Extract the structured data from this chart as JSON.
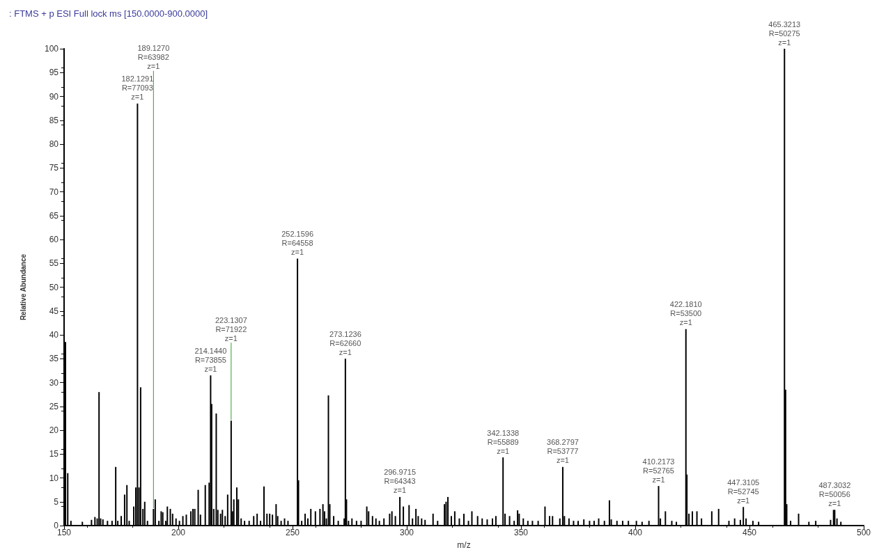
{
  "chart_data": {
    "type": "bar",
    "title": ": FTMS + p ESI Full lock ms [150.0000-900.0000]",
    "xlabel": "m/z",
    "ylabel": "Relative Abundance",
    "xlim": [
      150,
      500
    ],
    "xticks": [
      150,
      200,
      250,
      300,
      350,
      400,
      450,
      500
    ],
    "ylim": [
      0,
      100
    ],
    "yticks": [
      0,
      5,
      10,
      15,
      20,
      25,
      30,
      35,
      40,
      45,
      50,
      55,
      60,
      65,
      70,
      75,
      80,
      85,
      90,
      95,
      100
    ],
    "grid": false,
    "series": [
      {
        "color": "#000000",
        "x": [
          150.6,
          151.6,
          153,
          158,
          162,
          163.5,
          164.5,
          165.3,
          166,
          167,
          169,
          171,
          172.6,
          173.5,
          175,
          176.5,
          177.5,
          178.5,
          180.5,
          181.4,
          182.1291,
          182.8,
          183.5,
          184.5,
          185.3,
          186.5,
          189.127,
          189.9,
          191.5,
          192.5,
          193.2,
          194.5,
          195.2,
          196.5,
          197.5,
          199,
          200.5,
          202,
          203.5,
          205.5,
          206.4,
          207.2,
          208.7,
          209.7,
          211.8,
          213.5,
          214.144,
          214.6,
          215.5,
          216.6,
          217.3,
          218.5,
          219.3,
          220.5,
          221.6,
          223.1307,
          223.7,
          224.3,
          225.6,
          226.3,
          227.5,
          229,
          231,
          233,
          234.5,
          236,
          237.5,
          238.8,
          240,
          241.2,
          242.8,
          243.5,
          245,
          246.5,
          248,
          252.1596,
          252.6,
          254,
          255.5,
          256.7,
          258,
          260,
          262,
          263.3,
          264,
          264.8,
          265.7,
          266.3,
          268,
          270,
          272.6,
          273.1236,
          273.6,
          274.5,
          276,
          278,
          280,
          282.5,
          283.3,
          285,
          286.5,
          288,
          290,
          292.5,
          293.5,
          295,
          296.9715,
          298.5,
          301,
          302.5,
          304,
          305,
          306.5,
          308,
          311.5,
          313.5,
          316.5,
          317.2,
          318,
          319.5,
          321,
          323,
          325,
          327,
          328.5,
          331,
          333,
          335.2,
          337.5,
          339,
          342.1338,
          343,
          345,
          347,
          348.5,
          349.2,
          351,
          353,
          355,
          357.5,
          360.5,
          362.5,
          363.8,
          367,
          368.2797,
          369,
          371,
          373,
          375,
          377.5,
          380,
          382,
          384,
          386.5,
          388.7,
          389.5,
          392,
          394.5,
          397,
          400.5,
          403,
          406,
          410.2173,
          411,
          413.2,
          416,
          418,
          422.181,
          422.6,
          423.5,
          425,
          427,
          429,
          433.5,
          436.5,
          441,
          443.5,
          446,
          447.3105,
          448.5,
          451.5,
          454,
          465.3213,
          465.8,
          466.3,
          468,
          471.5,
          476,
          479,
          485.5,
          486.8,
          487.3032,
          488.3,
          490
        ],
        "values": [
          38.5,
          11,
          1,
          0.8,
          1.2,
          1.8,
          1.5,
          28,
          1.5,
          1.3,
          1,
          1,
          12.3,
          1,
          2,
          6.5,
          8.5,
          1,
          4,
          8,
          88.5,
          8,
          29,
          3.5,
          5,
          1,
          3.5,
          5.5,
          1,
          3,
          2.8,
          1,
          4,
          3.5,
          2.5,
          1.5,
          1,
          2,
          2.3,
          3,
          3.5,
          3.5,
          7.5,
          2.3,
          8.5,
          9,
          31.5,
          25.5,
          3.5,
          23.5,
          3.3,
          2.5,
          3.3,
          2,
          6.5,
          22,
          3,
          5.5,
          8,
          5.5,
          1.5,
          1,
          1,
          2,
          2.5,
          1,
          8.2,
          2.5,
          2.5,
          2.3,
          4.5,
          2,
          1,
          1.5,
          1,
          56,
          9.5,
          1,
          2.5,
          1.5,
          3.5,
          3,
          3.5,
          4.5,
          3,
          1.5,
          27.3,
          4.5,
          2,
          1,
          1.5,
          35,
          5.5,
          1,
          1.5,
          1,
          1,
          4,
          3,
          2,
          1.5,
          1,
          1.5,
          2.5,
          3,
          2,
          6,
          4,
          4.3,
          1.5,
          3.5,
          2,
          1.5,
          1.2,
          2.5,
          1,
          4.5,
          5,
          6,
          2,
          3,
          1.5,
          2.5,
          1,
          3,
          2,
          1.5,
          1.3,
          1.5,
          2,
          14.3,
          2.5,
          2,
          1,
          3.2,
          2.5,
          1.5,
          1,
          1,
          1,
          4,
          2,
          2,
          1.5,
          12.3,
          2,
          1.5,
          1,
          1,
          1.3,
          1,
          1,
          1.5,
          1,
          5.3,
          1.3,
          1,
          1,
          1,
          1,
          0.8,
          1,
          8.3,
          1.5,
          3,
          1,
          0.8,
          41.2,
          10.7,
          2.5,
          3,
          3,
          1.5,
          3,
          3.5,
          1,
          1.5,
          1.2,
          3.9,
          1.5,
          1,
          0.8,
          100,
          28.5,
          4.5,
          1,
          2.5,
          0.8,
          1,
          1.2,
          3.3,
          3.3,
          1.5,
          0.8
        ]
      }
    ],
    "annotations": [
      {
        "text": "182.1291\nR=77093\nz=1",
        "x": 182.1291,
        "y": 88.5
      },
      {
        "text": "189.1270\nR=63982\nz=1",
        "x": 189.127,
        "y": 3.5
      },
      {
        "text": "214.1440\nR=73855\nz=1",
        "x": 214.144,
        "y": 31.5
      },
      {
        "text": "223.1307\nR=71922\nz=1",
        "x": 223.1307,
        "y": 22
      },
      {
        "text": "252.1596\nR=64558\nz=1",
        "x": 252.1596,
        "y": 56
      },
      {
        "text": "273.1236\nR=62660\nz=1",
        "x": 273.1236,
        "y": 35
      },
      {
        "text": "296.9715\nR=64343\nz=1",
        "x": 296.9715,
        "y": 6
      },
      {
        "text": "342.1338\nR=55889\nz=1",
        "x": 342.1338,
        "y": 14.3
      },
      {
        "text": "368.2797\nR=53777\nz=1",
        "x": 368.2797,
        "y": 12.3
      },
      {
        "text": "410.2173\nR=52765\nz=1",
        "x": 410.2173,
        "y": 8.3
      },
      {
        "text": "422.1810\nR=53500\nz=1",
        "x": 422.181,
        "y": 41.2
      },
      {
        "text": "447.3105\nR=52745\nz=1",
        "x": 447.3105,
        "y": 3.9
      },
      {
        "text": "465.3213\nR=50275\nz=1",
        "x": 465.3213,
        "y": 100
      },
      {
        "text": "487.3032\nR=50056\nz=1",
        "x": 487.3032,
        "y": 3.3
      }
    ]
  }
}
